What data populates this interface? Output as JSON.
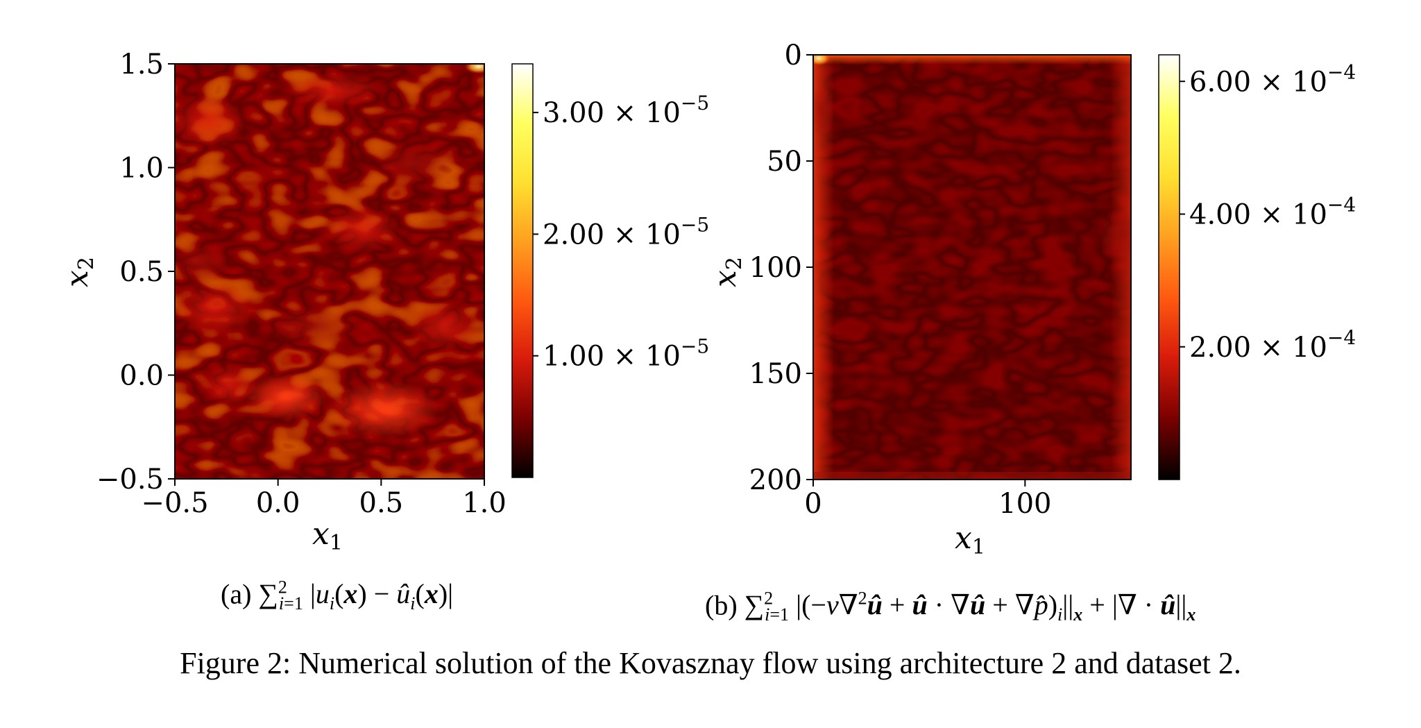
{
  "figure_caption": "Figure 2: Numerical solution of the Kovasznay flow using architecture 2 and dataset 2.",
  "colormap": [
    "#000000",
    "#7a0000",
    "#d81b0b",
    "#ff5a10",
    "#ffa020",
    "#ffe030",
    "#ffff60",
    "#ffffff"
  ],
  "chart_data": [
    {
      "type": "heatmap",
      "panel": "(a)",
      "caption_label": "(a)",
      "xlabel": "x1",
      "ylabel": "x2",
      "xlim": [
        -0.5,
        1.0
      ],
      "ylim": [
        -0.5,
        1.5
      ],
      "x_ticks": [
        -0.5,
        0.0,
        0.5,
        1.0
      ],
      "x_tick_labels": [
        "−0.5",
        "0.0",
        "0.5",
        "1.0"
      ],
      "y_ticks": [
        -0.5,
        0.0,
        0.5,
        1.0,
        1.5
      ],
      "y_tick_labels": [
        "−0.5",
        "0.0",
        "0.5",
        "1.0",
        "1.5"
      ],
      "colorbar": {
        "range": [
          0,
          3.4e-05
        ],
        "ticks": [
          1e-05,
          2e-05,
          3e-05
        ],
        "tick_mantissas": [
          "1.00",
          "2.00",
          "3.00"
        ],
        "tick_exponent": "−5"
      }
    },
    {
      "type": "heatmap",
      "panel": "(b)",
      "caption_label": "(b)",
      "xlabel": "x1",
      "ylabel": "x2",
      "xlim": [
        0,
        150
      ],
      "ylim": [
        200,
        0
      ],
      "x_ticks": [
        0,
        100
      ],
      "x_tick_labels": [
        "0",
        "100"
      ],
      "y_ticks": [
        0,
        50,
        100,
        150,
        200
      ],
      "y_tick_labels": [
        "0",
        "50",
        "100",
        "150",
        "200"
      ],
      "colorbar": {
        "range": [
          0,
          0.00064
        ],
        "ticks": [
          0.0002,
          0.0004,
          0.0006
        ],
        "tick_mantissas": [
          "2.00",
          "4.00",
          "6.00"
        ],
        "tick_exponent": "−4"
      }
    }
  ]
}
